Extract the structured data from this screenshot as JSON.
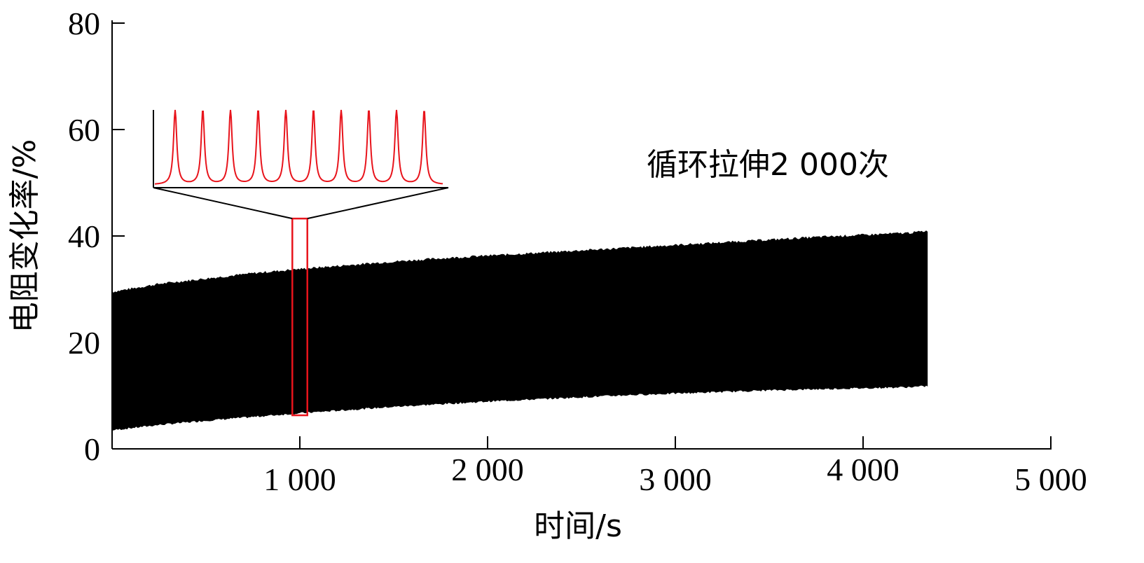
{
  "chart_data": {
    "type": "area",
    "xlabel": "时间/s",
    "ylabel": "电阻变化率/%",
    "xlim": [
      0,
      5000
    ],
    "ylim": [
      0,
      80
    ],
    "x_ticks": [
      {
        "value": 1000,
        "label": "1 000"
      },
      {
        "value": 2000,
        "label": "2 000"
      },
      {
        "value": 3000,
        "label": "3 000"
      },
      {
        "value": 4000,
        "label": "4 000"
      },
      {
        "value": 5000,
        "label": "5 000"
      }
    ],
    "y_ticks": [
      {
        "value": 0,
        "label": "0"
      },
      {
        "value": 20,
        "label": "20"
      },
      {
        "value": 40,
        "label": "40"
      },
      {
        "value": 60,
        "label": "60"
      },
      {
        "value": 80,
        "label": "80"
      }
    ],
    "annotation": "循环拉伸2 000次",
    "envelope": {
      "x": [
        0,
        250,
        500,
        750,
        1000,
        1250,
        1500,
        1750,
        2000,
        2250,
        2500,
        2750,
        3000,
        3250,
        3500,
        3750,
        4000,
        4250,
        4350
      ],
      "upper": [
        29.5,
        31.0,
        32.0,
        33.0,
        33.8,
        34.5,
        35.2,
        35.8,
        36.3,
        36.8,
        37.3,
        37.8,
        38.3,
        38.8,
        39.3,
        39.8,
        40.2,
        40.6,
        41.0
      ],
      "lower": [
        3.5,
        4.5,
        5.3,
        6.0,
        6.7,
        7.3,
        7.9,
        8.4,
        8.9,
        9.3,
        9.7,
        10.1,
        10.4,
        10.7,
        11.0,
        11.2,
        11.4,
        11.6,
        11.8
      ]
    },
    "highlight_x": [
      960,
      1040
    ],
    "inset_peaks": 10,
    "colors": {
      "signal": "#000000",
      "highlight": "#e8141c",
      "axis": "#000000"
    },
    "grid": false
  }
}
